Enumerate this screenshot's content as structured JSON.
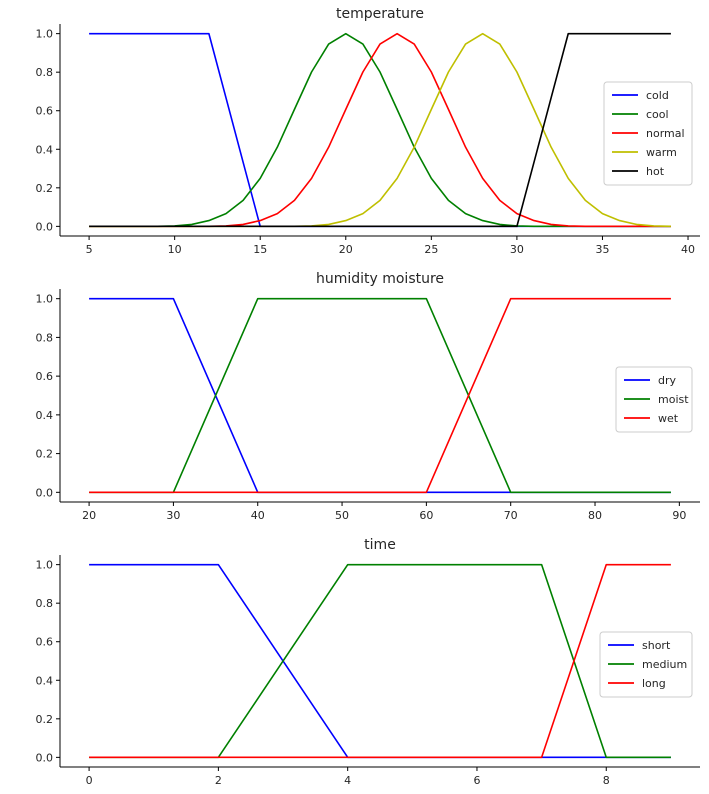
{
  "chart_data": [
    {
      "type": "line",
      "title": "temperature",
      "xlabel": "",
      "ylabel": "",
      "xlim": [
        3.3,
        40.7
      ],
      "ylim": [
        -0.05,
        1.05
      ],
      "xticks": [
        5,
        10,
        15,
        20,
        25,
        30,
        35,
        40
      ],
      "xtick_labels": [
        "5",
        "10",
        "15",
        "20",
        "25",
        "30",
        "35",
        "40"
      ],
      "yticks": [
        0.0,
        0.2,
        0.4,
        0.6,
        0.8,
        1.0
      ],
      "ytick_labels": [
        "0.0",
        "0.2",
        "0.4",
        "0.6",
        "0.8",
        "1.0"
      ],
      "grid": false,
      "legend_position": "center-right",
      "x": [
        5,
        6,
        7,
        8,
        9,
        10,
        11,
        12,
        13,
        14,
        15,
        16,
        17,
        18,
        19,
        20,
        21,
        22,
        23,
        24,
        25,
        26,
        27,
        28,
        29,
        30,
        31,
        32,
        33,
        34,
        35,
        36,
        37,
        38,
        39
      ],
      "series": [
        {
          "name": "cold",
          "color": "#0000ff",
          "values": [
            1,
            1,
            1,
            1,
            1,
            1,
            1,
            1,
            0.667,
            0.333,
            0,
            0,
            0,
            0,
            0,
            0,
            0,
            0,
            0,
            0,
            0,
            0,
            0,
            0,
            0,
            0,
            0,
            0,
            0,
            0,
            0,
            0,
            0,
            0,
            0
          ]
        },
        {
          "name": "cool",
          "color": "#008000",
          "values": [
            0,
            0,
            0,
            0,
            0,
            0.002,
            0.01,
            0.03,
            0.066,
            0.135,
            0.249,
            0.411,
            0.607,
            0.801,
            0.946,
            1.0,
            0.946,
            0.801,
            0.607,
            0.411,
            0.249,
            0.135,
            0.066,
            0.03,
            0.01,
            0.002,
            0,
            0,
            0,
            0,
            0,
            0,
            0,
            0,
            0
          ]
        },
        {
          "name": "normal",
          "color": "#ff0000",
          "values": [
            0,
            0,
            0,
            0,
            0,
            0,
            0,
            0,
            0.002,
            0.01,
            0.03,
            0.066,
            0.135,
            0.249,
            0.411,
            0.607,
            0.801,
            0.946,
            1.0,
            0.946,
            0.801,
            0.607,
            0.411,
            0.249,
            0.135,
            0.066,
            0.03,
            0.01,
            0.002,
            0,
            0,
            0,
            0,
            0,
            0
          ]
        },
        {
          "name": "warm",
          "color": "#bfbf00",
          "values": [
            0,
            0,
            0,
            0,
            0,
            0,
            0,
            0,
            0,
            0,
            0,
            0,
            0,
            0.002,
            0.01,
            0.03,
            0.066,
            0.135,
            0.249,
            0.411,
            0.607,
            0.801,
            0.946,
            1.0,
            0.946,
            0.801,
            0.607,
            0.411,
            0.249,
            0.135,
            0.066,
            0.03,
            0.01,
            0.002,
            0
          ]
        },
        {
          "name": "hot",
          "color": "#000000",
          "values": [
            0,
            0,
            0,
            0,
            0,
            0,
            0,
            0,
            0,
            0,
            0,
            0,
            0,
            0,
            0,
            0,
            0,
            0,
            0,
            0,
            0,
            0,
            0,
            0,
            0,
            0,
            0.333,
            0.667,
            1,
            1,
            1,
            1,
            1,
            1,
            1
          ]
        }
      ]
    },
    {
      "type": "line",
      "title": "humidity moisture",
      "xlabel": "",
      "ylabel": "",
      "xlim": [
        16.55,
        92.45
      ],
      "ylim": [
        -0.05,
        1.05
      ],
      "xticks": [
        20,
        30,
        40,
        50,
        60,
        70,
        80,
        90
      ],
      "xtick_labels": [
        "20",
        "30",
        "40",
        "50",
        "60",
        "70",
        "80",
        "90"
      ],
      "yticks": [
        0.0,
        0.2,
        0.4,
        0.6,
        0.8,
        1.0
      ],
      "ytick_labels": [
        "0.0",
        "0.2",
        "0.4",
        "0.6",
        "0.8",
        "1.0"
      ],
      "grid": false,
      "legend_position": "center-right",
      "x": [
        20,
        30,
        40,
        60,
        70,
        89
      ],
      "series": [
        {
          "name": "dry",
          "color": "#0000ff",
          "values": [
            1,
            1,
            0,
            0,
            0,
            0
          ]
        },
        {
          "name": "moist",
          "color": "#008000",
          "values": [
            0,
            0,
            1,
            1,
            0,
            0
          ]
        },
        {
          "name": "wet",
          "color": "#ff0000",
          "values": [
            0,
            0,
            0,
            0,
            1,
            1
          ]
        }
      ]
    },
    {
      "type": "line",
      "title": "time",
      "xlabel": "",
      "ylabel": "",
      "xlim": [
        -0.45,
        9.45
      ],
      "ylim": [
        -0.05,
        1.05
      ],
      "xticks": [
        0,
        2,
        4,
        6,
        8
      ],
      "xtick_labels": [
        "0",
        "2",
        "4",
        "6",
        "8"
      ],
      "yticks": [
        0.0,
        0.2,
        0.4,
        0.6,
        0.8,
        1.0
      ],
      "ytick_labels": [
        "0.0",
        "0.2",
        "0.4",
        "0.6",
        "0.8",
        "1.0"
      ],
      "grid": false,
      "legend_position": "center-right",
      "x": [
        0,
        2,
        4,
        7,
        8,
        9
      ],
      "series": [
        {
          "name": "short",
          "color": "#0000ff",
          "values": [
            1,
            1,
            0,
            0,
            0,
            0
          ]
        },
        {
          "name": "medium",
          "color": "#008000",
          "values": [
            0,
            0,
            1,
            1,
            0,
            0
          ]
        },
        {
          "name": "long",
          "color": "#ff0000",
          "values": [
            0,
            0,
            0,
            0,
            1,
            1
          ]
        }
      ]
    }
  ]
}
